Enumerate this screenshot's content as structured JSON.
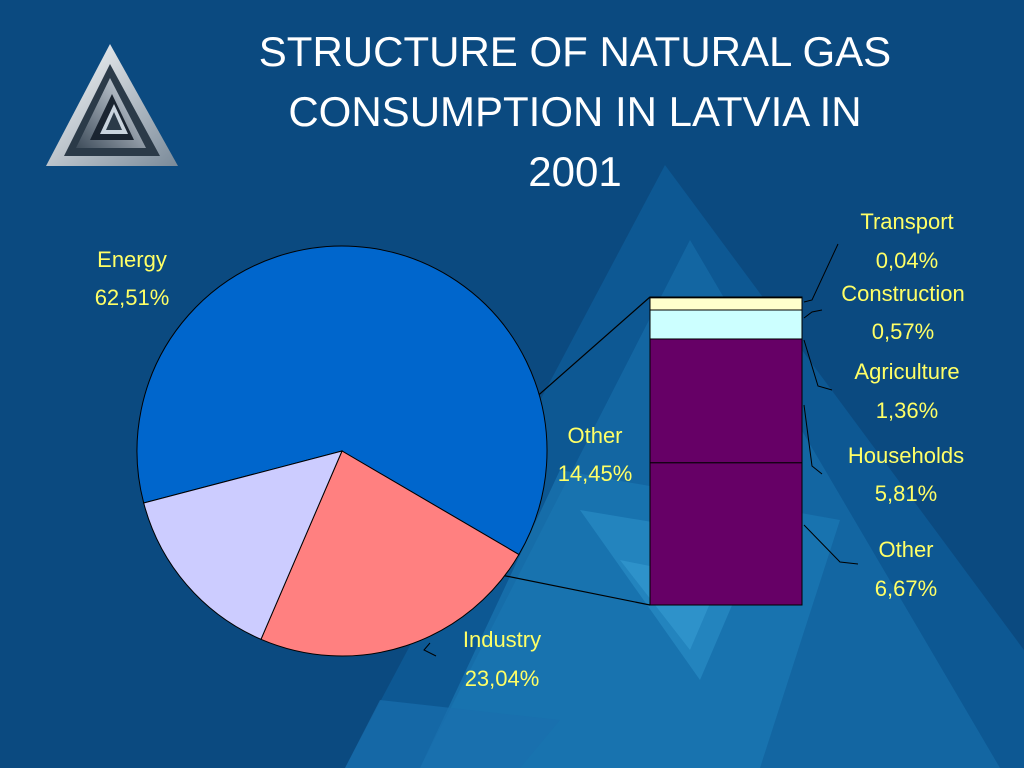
{
  "slide": {
    "title_lines": [
      "STRUCTURE OF NATURAL GAS",
      "CONSUMPTION IN LATVIA IN",
      "2001"
    ]
  },
  "colors": {
    "background": "#0b4a80",
    "label": "#ffff66",
    "energy": "#0066cc",
    "industry": "#ff8080",
    "other_main": "#ccccff",
    "transport": "#993366",
    "construction": "#ffffcc",
    "agriculture": "#ccffff",
    "households": "#660066"
  },
  "chart_data": [
    {
      "type": "pie",
      "slices": [
        {
          "key": "energy",
          "name": "Energy",
          "value": 62.51,
          "label": "62,51%"
        },
        {
          "key": "industry",
          "name": "Industry",
          "value": 23.04,
          "label": "23,04%"
        },
        {
          "key": "other_main",
          "name": "Other",
          "value": 14.45,
          "label": "14,45%"
        }
      ]
    },
    {
      "type": "bar",
      "stacked": true,
      "note_parent": "Other",
      "segments": [
        {
          "key": "transport",
          "name": "Transport",
          "value": 0.04,
          "label": "0,04%"
        },
        {
          "key": "construction",
          "name": "Construction",
          "value": 0.57,
          "label": "0,57%"
        },
        {
          "key": "agriculture",
          "name": "Agriculture",
          "value": 1.36,
          "label": "1,36%"
        },
        {
          "key": "households",
          "name": "Households",
          "value": 5.81,
          "label": "5,81%"
        },
        {
          "key": "other_sub",
          "name": "Other",
          "value": 6.67,
          "label": "6,67%"
        }
      ]
    }
  ]
}
